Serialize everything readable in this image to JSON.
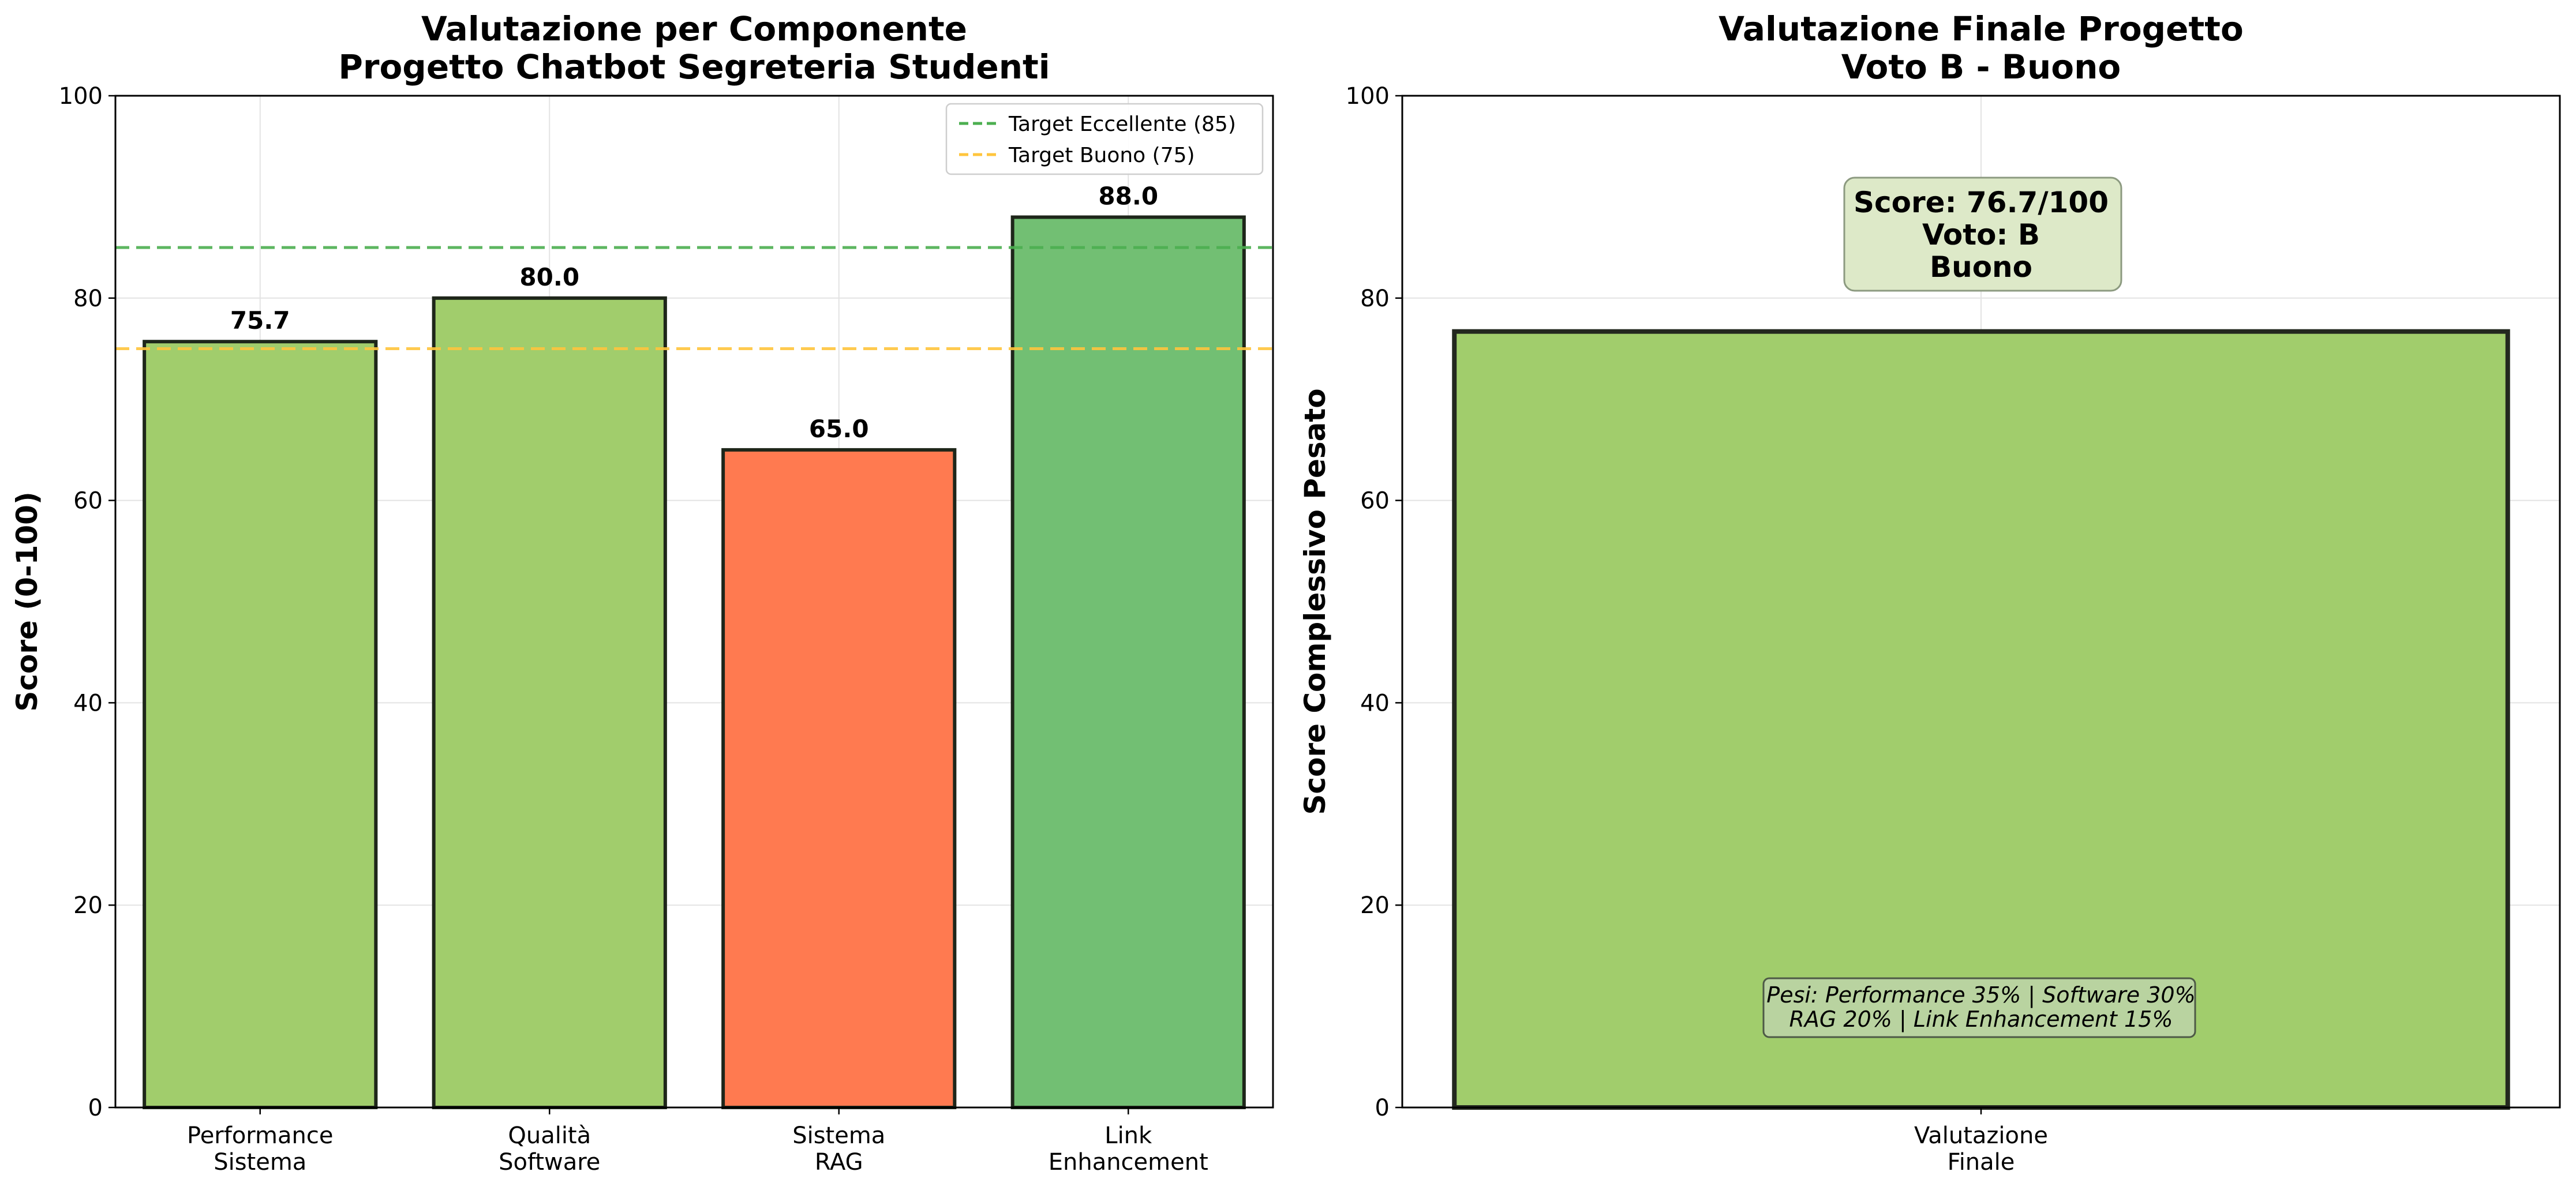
{
  "chart_data": [
    {
      "type": "bar",
      "title": [
        "Valutazione per Componente",
        "Progetto Chatbot Segreteria Studenti"
      ],
      "ylabel": "Score (0-100)",
      "xlabel": "",
      "ylim": [
        0,
        100
      ],
      "yticks": [
        "0",
        "20",
        "40",
        "60",
        "80",
        "100"
      ],
      "grid": true,
      "categories": [
        [
          "Performance",
          "Sistema"
        ],
        [
          "Qualità",
          "Software"
        ],
        [
          "Sistema",
          "RAG"
        ],
        [
          "Link",
          "Enhancement"
        ]
      ],
      "values": [
        75.7,
        80.0,
        65.0,
        88.0
      ],
      "value_labels": [
        "75.7",
        "80.0",
        "65.0",
        "88.0"
      ],
      "bar_colors": [
        "#a1cd6c",
        "#a1cd6c",
        "#ff7a50",
        "#72bf73"
      ],
      "reference_lines": [
        {
          "label": "Target Eccellente (85)",
          "value": 85,
          "color": "#4caf50"
        },
        {
          "label": "Target Buono (75)",
          "value": 75,
          "color": "#ffc53d"
        }
      ],
      "legend_position": "top-right"
    },
    {
      "type": "bar",
      "title": [
        "Valutazione Finale Progetto",
        "Voto B - Buono"
      ],
      "ylabel": "Score Complessivo Pesato",
      "xlabel": "",
      "ylim": [
        0,
        100
      ],
      "yticks": [
        "0",
        "20",
        "40",
        "60",
        "80",
        "100"
      ],
      "grid": true,
      "categories": [
        [
          "Valutazione",
          "Finale"
        ]
      ],
      "values": [
        76.7
      ],
      "bar_colors": [
        "#a1cd6c"
      ],
      "score_annotation": [
        "Score: 76.7/100",
        "Voto: B",
        "Buono"
      ],
      "weights_note": [
        "Pesi: Performance 35% | Software 30%",
        "RAG 20% | Link Enhancement 15%"
      ]
    }
  ]
}
